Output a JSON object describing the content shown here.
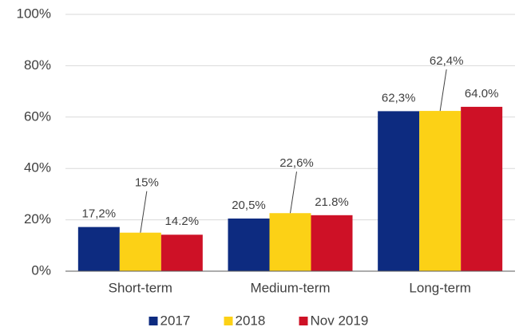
{
  "chart_data": {
    "type": "bar",
    "categories": [
      "Short-term",
      "Medium-term",
      "Long-term"
    ],
    "series": [
      {
        "name": "2017",
        "color": "#0d2b80",
        "values": [
          17.2,
          20.5,
          62.3
        ],
        "value_labels": [
          "17,2%",
          "20,5%",
          "62,3%"
        ]
      },
      {
        "name": "2018",
        "color": "#fcd116",
        "values": [
          15,
          22.6,
          62.4
        ],
        "value_labels": [
          "15%",
          "22,6%",
          "62,4%"
        ]
      },
      {
        "name": "Nov 2019",
        "color": "#ce1126",
        "values": [
          14.2,
          21.8,
          64.0
        ],
        "value_labels": [
          "14.2%",
          "21.8%",
          "64.0%"
        ]
      }
    ],
    "ylim": [
      0,
      100
    ],
    "yticks": [
      {
        "value": 0,
        "label": "0%"
      },
      {
        "value": 20,
        "label": "20%"
      },
      {
        "value": 40,
        "label": "40%"
      },
      {
        "value": 60,
        "label": "60%"
      },
      {
        "value": 80,
        "label": "80%"
      },
      {
        "value": 100,
        "label": "100%"
      }
    ],
    "grid": true,
    "legend": "bottom"
  }
}
